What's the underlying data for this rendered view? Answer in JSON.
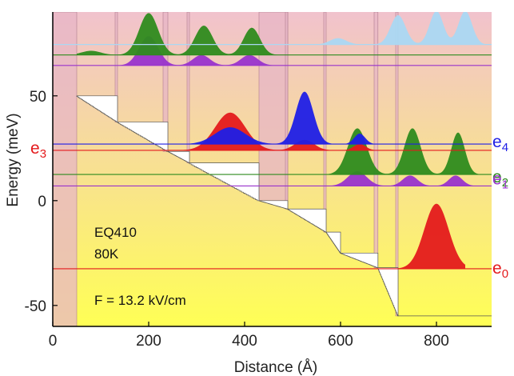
{
  "chart_data": {
    "type": "line",
    "xlabel": "Distance (Å)",
    "ylabel": "Energy (meV)",
    "xlim": [
      0,
      915
    ],
    "ylim": [
      -60,
      90
    ],
    "x_ticks": [
      0,
      200,
      400,
      600,
      800
    ],
    "y_ticks": [
      -50,
      0,
      50
    ],
    "grid": false,
    "annotations": [
      "EQ410",
      "80K",
      "F = 13.2 kV/cm"
    ],
    "band_profile": {
      "well_start": [
        50,
        135,
        240,
        285,
        430,
        490,
        570,
        600,
        678,
        720
      ],
      "well_end": [
        135,
        240,
        285,
        430,
        490,
        570,
        600,
        678,
        720,
        915
      ],
      "left_energy": [
        50,
        37.5,
        23.5,
        18,
        0,
        -4,
        -15,
        -25,
        -32,
        -55
      ],
      "right_energy": [
        37.5,
        23.5,
        18,
        0,
        -4,
        -15,
        -25,
        -32,
        -55,
        -55
      ],
      "barrier_start": [
        0,
        130,
        230,
        280,
        430,
        485,
        565,
        600,
        670,
        715
      ],
      "barrier_end": [
        50,
        135,
        240,
        285,
        490,
        490,
        570,
        600,
        678,
        720
      ],
      "barrier_height": 90,
      "colors": {
        "barrier": "#e7b5c6",
        "background_top": "#f1c2cd",
        "background_bottom": "#ffff55"
      }
    },
    "levels": [
      {
        "name": "e0",
        "energy": -32.5,
        "color": "#e41a1c",
        "wavefunction": {
          "x_min": 700,
          "x_max": 860,
          "peaks": [
            {
              "center": 800,
              "width": 36,
              "height": 31
            }
          ]
        }
      },
      {
        "name": "e1",
        "energy": 7,
        "color": "#9933cc",
        "wavefunction": {
          "x_min": 560,
          "x_max": 900,
          "peaks": [
            {
              "center": 635,
              "width": 28,
              "height": 7
            },
            {
              "center": 745,
              "width": 22,
              "height": 5
            },
            {
              "center": 840,
              "width": 20,
              "height": 5
            }
          ]
        }
      },
      {
        "name": "e2",
        "energy": 12.5,
        "color": "#2e8b1e",
        "wavefunction": {
          "x_min": 520,
          "x_max": 900,
          "peaks": [
            {
              "center": 440,
              "width": 22,
              "height": 1
            },
            {
              "center": 635,
              "width": 28,
              "height": 22
            },
            {
              "center": 750,
              "width": 24,
              "height": 22
            },
            {
              "center": 845,
              "width": 20,
              "height": 20
            }
          ]
        }
      },
      {
        "name": "e3",
        "energy": 24,
        "color": "#e41a1c",
        "wavefunction": {
          "x_min": 250,
          "x_max": 680,
          "peaks": [
            {
              "center": 370,
              "width": 45,
              "height": 18
            },
            {
              "center": 525,
              "width": 28,
              "height": 5
            },
            {
              "center": 640,
              "width": 18,
              "height": 3
            }
          ]
        }
      },
      {
        "name": "e4",
        "energy": 27,
        "color": "#1f1fe6",
        "wavefunction": {
          "x_min": 250,
          "x_max": 680,
          "peaks": [
            {
              "center": 370,
              "width": 45,
              "height": 8
            },
            {
              "center": 525,
              "width": 26,
              "height": 25
            },
            {
              "center": 640,
              "width": 16,
              "height": 5
            }
          ]
        }
      },
      {
        "name": "upper-purple",
        "energy": 64.5,
        "color": "#9933cc",
        "wavefunction": {
          "x_min": 50,
          "x_max": 600,
          "peaks": [
            {
              "center": 200,
              "width": 28,
              "height": 14
            },
            {
              "center": 310,
              "width": 25,
              "height": 5
            },
            {
              "center": 410,
              "width": 25,
              "height": 5
            }
          ]
        }
      },
      {
        "name": "upper-green",
        "energy": 69.5,
        "color": "#2e8b1e",
        "wavefunction": {
          "x_min": 50,
          "x_max": 600,
          "peaks": [
            {
              "center": 80,
              "width": 28,
              "height": 2
            },
            {
              "center": 200,
              "width": 28,
              "height": 20
            },
            {
              "center": 315,
              "width": 26,
              "height": 14
            },
            {
              "center": 415,
              "width": 24,
              "height": 13
            }
          ]
        }
      },
      {
        "name": "upper-lightblue",
        "energy": 74.5,
        "color": "#aad8f3",
        "wavefunction": {
          "x_min": 480,
          "x_max": 915,
          "peaks": [
            {
              "center": 595,
              "width": 24,
              "height": 3
            },
            {
              "center": 720,
              "width": 22,
              "height": 14
            },
            {
              "center": 800,
              "width": 20,
              "height": 16
            },
            {
              "center": 860,
              "width": 20,
              "height": 16
            }
          ]
        }
      }
    ],
    "level_labels": [
      {
        "level": "e4",
        "base": "e",
        "sub": "4"
      },
      {
        "level": "e3",
        "base": "e",
        "sub": "3"
      },
      {
        "level": "e2",
        "base": "e",
        "sub": "2"
      },
      {
        "level": "e1",
        "base": "e",
        "sub": "1"
      },
      {
        "level": "e0",
        "base": "e",
        "sub": "0"
      }
    ]
  }
}
